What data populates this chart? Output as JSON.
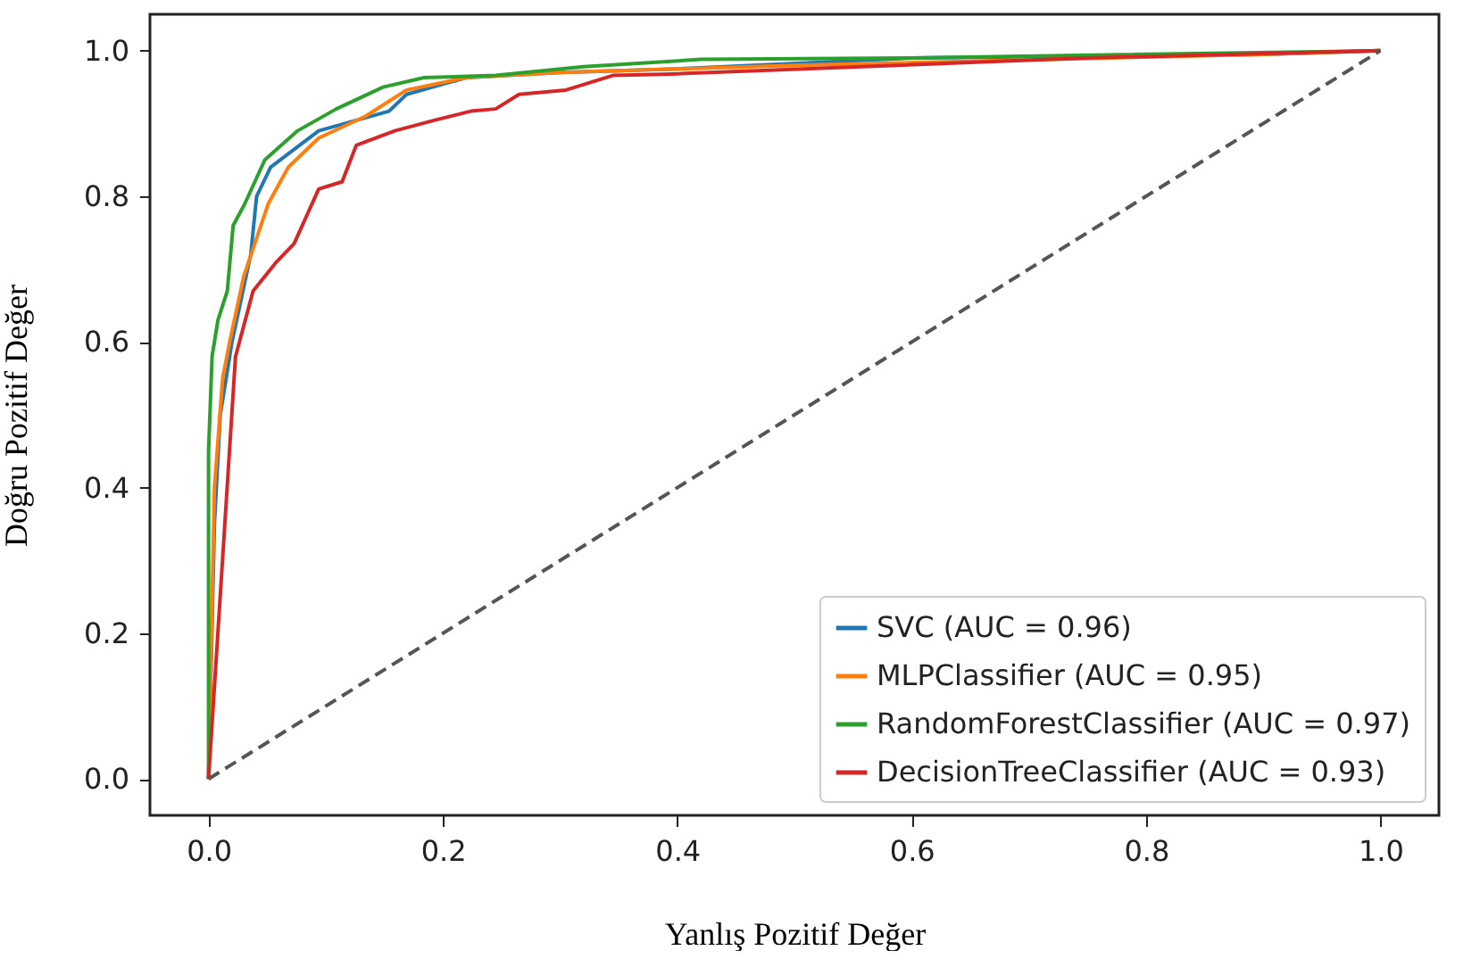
{
  "chart_data": {
    "type": "line",
    "xlabel": "Yanlış Pozitif Değer",
    "ylabel": "Doğru Pozitif Değer",
    "xlim": [
      -0.05,
      1.05
    ],
    "ylim": [
      -0.05,
      1.05
    ],
    "xticks": [
      {
        "value": 0,
        "label": "0.0"
      },
      0.2,
      0.4,
      0.6,
      0.8,
      {
        "value": 1,
        "label": "1.0"
      }
    ],
    "yticks": [
      {
        "value": 0,
        "label": "0.0"
      },
      0.2,
      0.4,
      0.6,
      0.8,
      {
        "value": 1,
        "label": "1.0"
      }
    ],
    "grid": false,
    "legend": "bottom right",
    "marker": "none",
    "line_style": "solid",
    "series": [
      {
        "name": "SVC (AUC = 0.96)",
        "color": "#1f77b4",
        "x": [
          0,
          0.005,
          0.01,
          0.02,
          0.036,
          0.041,
          0.053,
          0.094,
          0.154,
          0.169,
          0.22,
          0.3,
          0.4,
          0.6,
          0.9,
          1
        ],
        "values": [
          0,
          0.35,
          0.5,
          0.6,
          0.72,
          0.8,
          0.84,
          0.89,
          0.917,
          0.94,
          0.963,
          0.97,
          0.975,
          0.99,
          0.995,
          1
        ]
      },
      {
        "name": "MLPClassifier (AUC = 0.95)",
        "color": "#ff7f0e",
        "x": [
          0,
          0.005,
          0.012,
          0.018,
          0.03,
          0.051,
          0.068,
          0.094,
          0.134,
          0.169,
          0.22,
          0.3,
          0.5,
          0.9,
          1
        ],
        "values": [
          0,
          0.4,
          0.55,
          0.6,
          0.69,
          0.79,
          0.84,
          0.88,
          0.91,
          0.946,
          0.963,
          0.97,
          0.98,
          0.995,
          1
        ]
      },
      {
        "name": "RandomForestClassifier (AUC = 0.97)",
        "color": "#2ca02c",
        "x": [
          0,
          0,
          0.003,
          0.008,
          0.016,
          0.021,
          0.031,
          0.048,
          0.076,
          0.109,
          0.149,
          0.184,
          0.245,
          0.32,
          0.42,
          0.6,
          1
        ],
        "values": [
          0,
          0.45,
          0.58,
          0.63,
          0.67,
          0.76,
          0.79,
          0.85,
          0.89,
          0.92,
          0.95,
          0.963,
          0.966,
          0.978,
          0.988,
          0.99,
          1
        ]
      },
      {
        "name": "DecisionTreeClassifier (AUC = 0.93)",
        "color": "#d62728",
        "x": [
          0,
          0.023,
          0.038,
          0.058,
          0.073,
          0.094,
          0.114,
          0.126,
          0.159,
          0.194,
          0.224,
          0.245,
          0.265,
          0.305,
          0.345,
          0.396,
          0.748,
          1
        ],
        "values": [
          0,
          0.58,
          0.67,
          0.71,
          0.735,
          0.81,
          0.82,
          0.87,
          0.89,
          0.905,
          0.917,
          0.92,
          0.94,
          0.946,
          0.966,
          0.968,
          0.99,
          1
        ]
      },
      {
        "type": "line",
        "color": "#555555",
        "line_style": "dashed",
        "x": [
          0,
          1
        ],
        "values": [
          0,
          1
        ]
      }
    ]
  }
}
